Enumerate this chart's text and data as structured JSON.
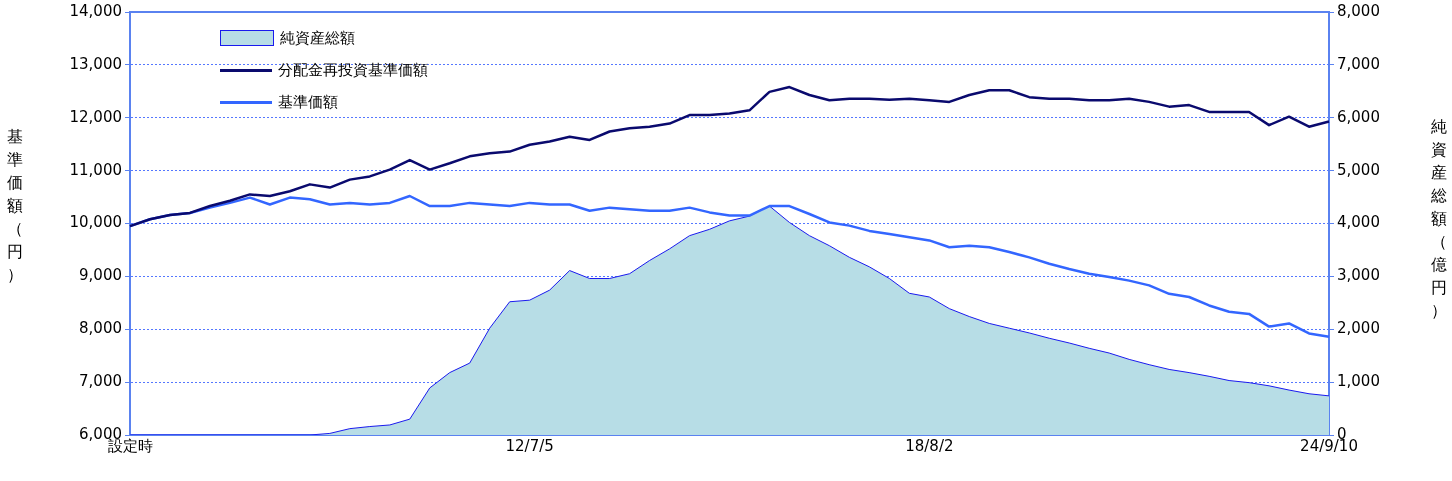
{
  "chart_data": {
    "type": "line",
    "xlabel": null,
    "ylabel": "基準価額（円）",
    "y2label": "純資産総額（億円）",
    "categories": [
      "設定時",
      null,
      null,
      null,
      null,
      null,
      null,
      null,
      null,
      null,
      null,
      null,
      null,
      null,
      null,
      null,
      null,
      null,
      null,
      null,
      "12/7/5",
      null,
      null,
      null,
      null,
      null,
      null,
      null,
      null,
      null,
      null,
      null,
      null,
      null,
      null,
      null,
      null,
      null,
      null,
      null,
      "18/8/2",
      null,
      null,
      null,
      null,
      null,
      null,
      null,
      null,
      null,
      null,
      null,
      null,
      null,
      null,
      null,
      null,
      null,
      null,
      null,
      "24/9/10"
    ],
    "series": [
      {
        "name": "純資産総額",
        "type": "area",
        "axis": "y2",
        "color": "#b7dde6",
        "values": [
          0,
          0,
          0,
          0,
          0,
          0,
          0,
          0,
          0,
          0,
          30,
          120,
          160,
          190,
          300,
          890,
          1180,
          1360,
          2020,
          2520,
          2550,
          2740,
          3110,
          2960,
          2960,
          3050,
          3300,
          3520,
          3770,
          3890,
          4050,
          4140,
          4330,
          4020,
          3770,
          3580,
          3360,
          3180,
          2960,
          2680,
          2610,
          2390,
          2240,
          2110,
          2020,
          1930,
          1830,
          1740,
          1640,
          1550,
          1430,
          1330,
          1240,
          1180,
          1110,
          1030,
          990,
          930,
          850,
          780,
          740
        ]
      },
      {
        "name": "分配金再投資基準価額",
        "color": "#0a0a6e",
        "values": [
          9950,
          10080,
          10160,
          10200,
          10330,
          10430,
          10550,
          10520,
          10610,
          10740,
          10680,
          10830,
          10890,
          11020,
          11200,
          11020,
          11140,
          11270,
          11330,
          11360,
          11490,
          11550,
          11640,
          11580,
          11740,
          11800,
          11830,
          11890,
          12050,
          12050,
          12080,
          12140,
          12490,
          12580,
          12430,
          12330,
          12360,
          12360,
          12340,
          12360,
          12330,
          12300,
          12430,
          12520,
          12520,
          12390,
          12360,
          12360,
          12330,
          12330,
          12360,
          12300,
          12210,
          12240,
          12110,
          12110,
          12110,
          11860,
          12020,
          11830,
          11930
        ]
      },
      {
        "name": "基準価額",
        "color": "#3366ff",
        "values": [
          9950,
          10080,
          10160,
          10200,
          10300,
          10390,
          10490,
          10360,
          10490,
          10460,
          10360,
          10390,
          10360,
          10390,
          10520,
          10330,
          10330,
          10390,
          10360,
          10330,
          10390,
          10360,
          10360,
          10240,
          10300,
          10270,
          10240,
          10240,
          10300,
          10210,
          10150,
          10150,
          10330,
          10330,
          10180,
          10020,
          9960,
          9860,
          9800,
          9740,
          9680,
          9550,
          9580,
          9550,
          9460,
          9360,
          9240,
          9140,
          9050,
          8990,
          8920,
          8830,
          8670,
          8610,
          8450,
          8330,
          8290,
          8050,
          8110,
          7920,
          7860
        ]
      }
    ],
    "ylim": [
      6000,
      14000
    ],
    "yticks": [
      {
        "value": 6000,
        "label": "6,000"
      },
      {
        "value": 7000,
        "label": "7,000"
      },
      {
        "value": 8000,
        "label": "8,000"
      },
      {
        "value": 9000,
        "label": "9,000"
      },
      {
        "value": 10000,
        "label": "10,000"
      },
      {
        "value": 11000,
        "label": "11,000"
      },
      {
        "value": 12000,
        "label": "12,000"
      },
      {
        "value": 13000,
        "label": "13,000"
      },
      {
        "value": 14000,
        "label": "14,000"
      }
    ],
    "y2lim": [
      0,
      8000
    ],
    "y2ticks": [
      0,
      {
        "value": 1000,
        "label": "1,000"
      },
      {
        "value": 2000,
        "label": "2,000"
      },
      {
        "value": 3000,
        "label": "3,000"
      },
      {
        "value": 4000,
        "label": "4,000"
      },
      {
        "value": 5000,
        "label": "5,000"
      },
      {
        "value": 6000,
        "label": "6,000"
      },
      {
        "value": 7000,
        "label": "7,000"
      },
      {
        "value": 8000,
        "label": "8,000"
      }
    ],
    "grid": "y",
    "legend": "top left",
    "marker": "none",
    "line_style": "solid"
  }
}
